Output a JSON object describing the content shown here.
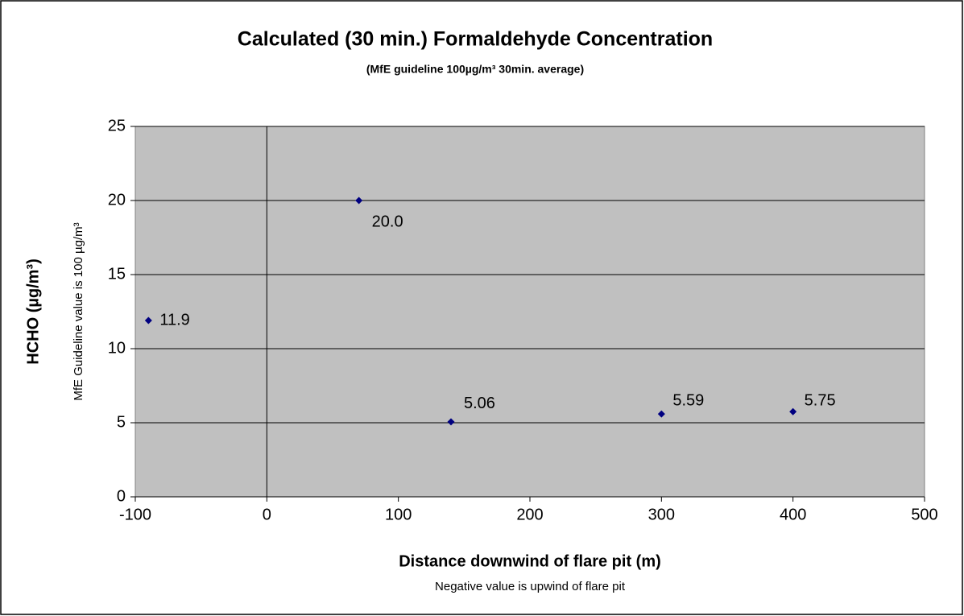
{
  "chart_data": {
    "type": "scatter",
    "title": "Calculated (30 min.) Formaldehyde Concentration",
    "subtitle": "(MfE guideline 100µg/m³ 30min. average)",
    "x_label": "Distance downwind of flare pit (m)",
    "x_note": "Negative value is upwind of flare pit",
    "y_label": "HCHO (µg/m³)",
    "y_note": "MfE Guideline value is 100 µg/m³",
    "x": [
      -90,
      70,
      140,
      300,
      400
    ],
    "series": [
      {
        "name": "HCHO",
        "color": "#000080",
        "values": [
          11.9,
          20.0,
          5.06,
          5.59,
          5.75
        ],
        "value_labels": [
          "11.9",
          "20.0",
          "5.06",
          "5.59",
          "5.75"
        ]
      }
    ],
    "xlim": [
      -100,
      500
    ],
    "xticks": [
      -100,
      0,
      100,
      200,
      300,
      400,
      500
    ],
    "ylim": [
      0,
      25
    ],
    "yticks": [
      0,
      5,
      10,
      15,
      20,
      25
    ],
    "grid": true
  }
}
